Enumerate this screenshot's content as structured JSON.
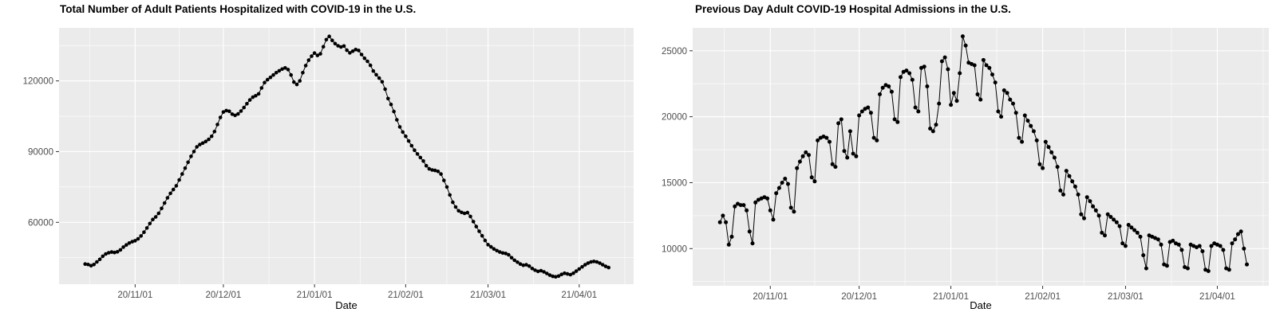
{
  "page": {
    "background": "#FFFFFF",
    "panel_color": "#EBEBEB",
    "grid_color": "#FFFFFF",
    "axis_text_color": "#4D4D4D",
    "tick_mark_color": "#333333",
    "point_color": "#000000"
  },
  "chart_data": [
    {
      "id": "hospitalized",
      "type": "line",
      "title": "Total Number of Adult Patients Hospitalized with COVID-19 in the U.S.",
      "xlabel": "Date",
      "ylabel": "",
      "legend_position": "none",
      "grid": true,
      "x_start_date": "2020-10-15",
      "x_end_date": "2021-04-11",
      "x_tick_labels": [
        "20/11/01",
        "20/12/01",
        "21/01/01",
        "21/02/01",
        "21/03/01",
        "21/04/01"
      ],
      "x_major_day_offsets": [
        17,
        47,
        78,
        109,
        137,
        168
      ],
      "x_minor_day_offsets": [
        1.5,
        32,
        62.5,
        93.5,
        123,
        152.5,
        183.5
      ],
      "y_tick_labels": [
        "60000",
        "90000",
        "120000"
      ],
      "y_ticks": [
        60000,
        90000,
        120000
      ],
      "y_minor": [
        45000,
        75000,
        105000,
        135000
      ],
      "ylim_panel": [
        33750,
        142500
      ],
      "xlim_panel_days": [
        -8.87,
        186.5
      ],
      "values": [
        42300,
        42100,
        41600,
        42100,
        43200,
        44300,
        45600,
        46600,
        47100,
        47400,
        47200,
        47500,
        48300,
        49500,
        50400,
        51200,
        51800,
        52200,
        53000,
        54200,
        55800,
        57600,
        59500,
        61200,
        62300,
        63800,
        65900,
        68200,
        70400,
        72300,
        73900,
        75500,
        78000,
        80500,
        83000,
        85500,
        88000,
        90000,
        92000,
        93000,
        93600,
        94300,
        95200,
        96500,
        98500,
        101500,
        104500,
        106800,
        107400,
        107100,
        105900,
        105400,
        106000,
        107200,
        108700,
        110300,
        111900,
        113100,
        113700,
        114500,
        117000,
        119300,
        120500,
        121500,
        122500,
        123500,
        124300,
        125000,
        125500,
        124800,
        122500,
        119500,
        118500,
        120000,
        123500,
        126500,
        128800,
        130500,
        131800,
        130800,
        131500,
        134500,
        137500,
        138900,
        137200,
        135800,
        134900,
        134400,
        134800,
        133000,
        131900,
        132600,
        133300,
        132900,
        131200,
        129600,
        128300,
        126600,
        124200,
        122600,
        121200,
        119600,
        116500,
        112500,
        110000,
        107000,
        103500,
        100500,
        98300,
        96500,
        94500,
        92500,
        90600,
        89000,
        87500,
        86000,
        84000,
        82700,
        82200,
        82000,
        81600,
        80500,
        77800,
        75000,
        71600,
        68500,
        66500,
        64900,
        64200,
        63800,
        64100,
        62500,
        60300,
        58200,
        56200,
        54300,
        52300,
        50500,
        49600,
        48700,
        48000,
        47400,
        47000,
        46800,
        46200,
        45000,
        43900,
        43100,
        42300,
        41800,
        42000,
        41400,
        40400,
        39700,
        39200,
        39500,
        39000,
        38300,
        37600,
        37100,
        36900,
        37200,
        37900,
        38400,
        38100,
        37800,
        38400,
        39300,
        40200,
        41100,
        42000,
        42700,
        43200,
        43400,
        43200,
        42700,
        42000,
        41300,
        40800
      ]
    },
    {
      "id": "admissions",
      "type": "line",
      "title": "Previous Day Adult COVID-19 Hospital Admissions in the U.S.",
      "xlabel": "Date",
      "ylabel": "",
      "legend_position": "none",
      "grid": true,
      "x_start_date": "2020-10-15",
      "x_end_date": "2021-04-11",
      "x_tick_labels": [
        "20/11/01",
        "20/12/01",
        "21/01/01",
        "21/02/01",
        "21/03/01",
        "21/04/01"
      ],
      "x_major_day_offsets": [
        17,
        47,
        78,
        109,
        137,
        168
      ],
      "x_minor_day_offsets": [
        1.5,
        32,
        62.5,
        93.5,
        123,
        152.5,
        183.5
      ],
      "y_tick_labels": [
        "10000",
        "15000",
        "20000",
        "25000"
      ],
      "y_ticks": [
        10000,
        15000,
        20000,
        25000
      ],
      "y_minor": [
        7500,
        12500,
        17500,
        22500
      ],
      "ylim_panel": [
        7181,
        26738
      ],
      "xlim_panel_days": [
        -9.22,
        185.4
      ],
      "values": [
        12000,
        12500,
        12000,
        10300,
        10900,
        13200,
        13400,
        13300,
        13300,
        12900,
        11300,
        10400,
        13500,
        13700,
        13800,
        13900,
        13800,
        12900,
        12200,
        14200,
        14600,
        15000,
        15300,
        14900,
        13100,
        12800,
        16100,
        16600,
        17000,
        17300,
        17100,
        15400,
        15100,
        18200,
        18400,
        18500,
        18400,
        18100,
        16400,
        16200,
        19500,
        19800,
        17400,
        16900,
        18900,
        17200,
        17000,
        20100,
        20400,
        20600,
        20700,
        20300,
        18400,
        18200,
        21700,
        22200,
        22400,
        22300,
        21900,
        19800,
        19600,
        23000,
        23400,
        23500,
        23300,
        22800,
        20700,
        20400,
        23700,
        23800,
        22300,
        19100,
        18900,
        19400,
        21000,
        24200,
        24500,
        23600,
        20900,
        21800,
        21200,
        23300,
        26100,
        25400,
        24100,
        24000,
        23900,
        21700,
        21300,
        24300,
        23900,
        23700,
        23200,
        22600,
        20400,
        20000,
        22000,
        21800,
        21300,
        21000,
        20300,
        18400,
        18100,
        20100,
        19700,
        19300,
        18900,
        18200,
        16400,
        16100,
        18100,
        17700,
        17300,
        16900,
        16200,
        14400,
        14100,
        15900,
        15500,
        15100,
        14700,
        14100,
        12600,
        12300,
        13900,
        13600,
        13200,
        12900,
        12500,
        11200,
        11000,
        12600,
        12400,
        12200,
        12000,
        11700,
        10400,
        10200,
        11800,
        11600,
        11400,
        11200,
        10900,
        9500,
        8500,
        11000,
        10900,
        10800,
        10700,
        10300,
        8800,
        8700,
        10500,
        10600,
        10400,
        10300,
        9900,
        8600,
        8500,
        10300,
        10200,
        10100,
        10200,
        9800,
        8400,
        8300,
        10200,
        10400,
        10300,
        10200,
        9900,
        8500,
        8400,
        10400,
        10700,
        11100,
        11300,
        10000,
        8800
      ]
    }
  ]
}
